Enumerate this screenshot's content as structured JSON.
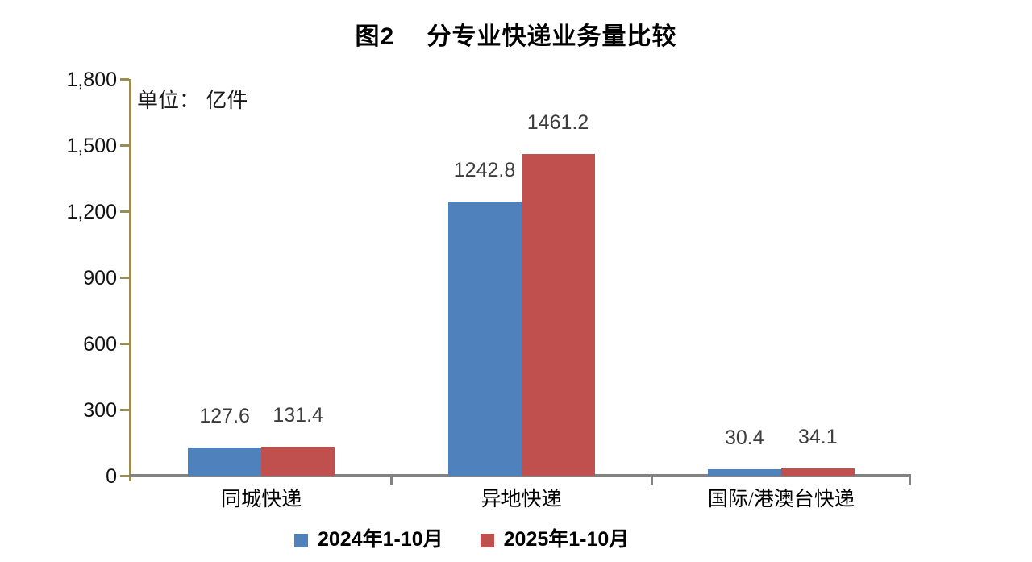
{
  "chart_data": {
    "type": "bar",
    "title": "图2　 分专业快递业务量比较",
    "unit_label": "单位： 亿件",
    "categories": [
      "同城快递",
      "异地快递",
      "国际/港澳台快递"
    ],
    "series": [
      {
        "name": "2024年1-10月",
        "color": "#4f81bd",
        "values": [
          127.6,
          1242.8,
          30.4
        ]
      },
      {
        "name": "2025年1-10月",
        "color": "#c0504d",
        "values": [
          131.4,
          1461.2,
          34.1
        ]
      }
    ],
    "ylim": [
      0,
      1800
    ],
    "ytick_step": 300,
    "ytick_labels": [
      "0",
      "300",
      "600",
      "900",
      "1,200",
      "1,500",
      "1,800"
    ],
    "xlabel": "",
    "ylabel": "",
    "grid": false,
    "legend_position": "bottom",
    "colors": {
      "y_axis": "#998c54",
      "x_axis": "#828282",
      "value_label": "#3d3d3d",
      "tick_label": "#111111",
      "title": "#000000",
      "background": "#ffffff"
    }
  }
}
